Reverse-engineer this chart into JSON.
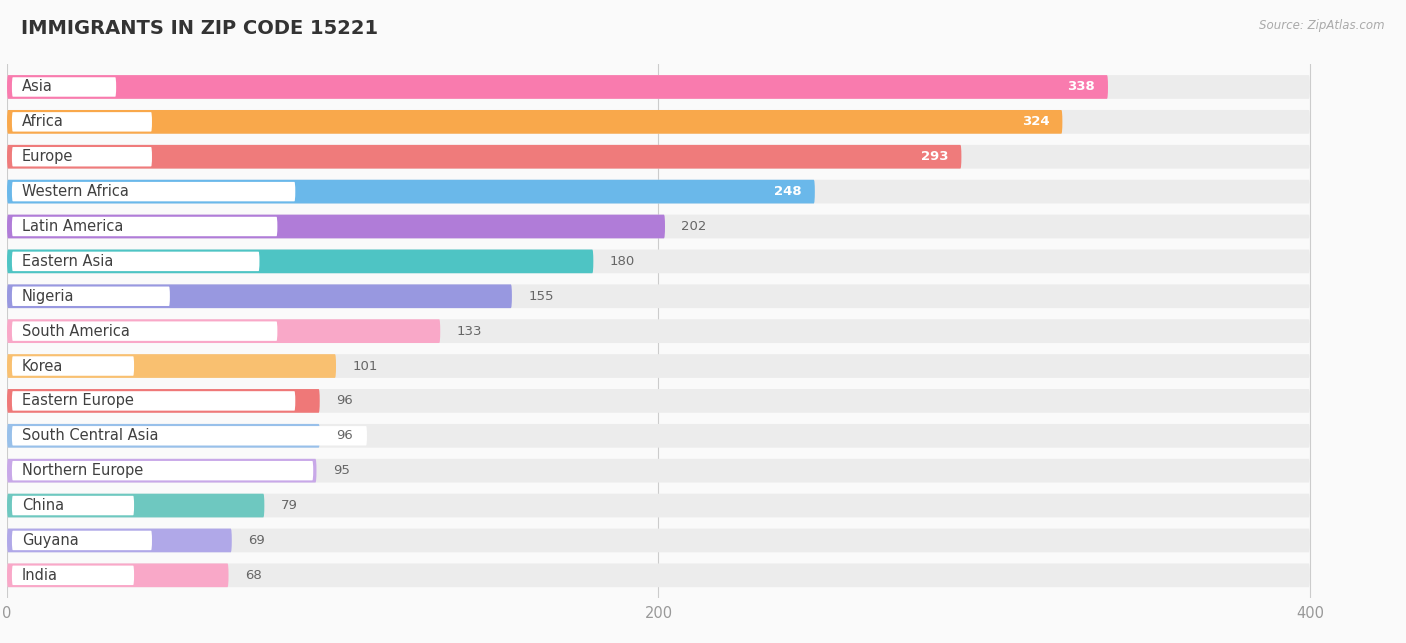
{
  "title": "IMMIGRANTS IN ZIP CODE 15221",
  "source": "Source: ZipAtlas.com",
  "categories": [
    "Asia",
    "Africa",
    "Europe",
    "Western Africa",
    "Latin America",
    "Eastern Asia",
    "Nigeria",
    "South America",
    "Korea",
    "Eastern Europe",
    "South Central Asia",
    "Northern Europe",
    "China",
    "Guyana",
    "India"
  ],
  "values": [
    338,
    324,
    293,
    248,
    202,
    180,
    155,
    133,
    101,
    96,
    96,
    95,
    79,
    69,
    68
  ],
  "colors": [
    "#F97BAE",
    "#F9A84B",
    "#EF7B7B",
    "#6AB8EA",
    "#B07CD8",
    "#4EC4C4",
    "#9898E0",
    "#F9A8C8",
    "#F9C070",
    "#EF7878",
    "#98C0EA",
    "#C8A8E8",
    "#6EC8C0",
    "#B0A8E8",
    "#F9A8C8"
  ],
  "bar_background": "#ECECEC",
  "background_color": "#FAFAFA",
  "xlim_data": 420,
  "data_max": 400,
  "xticks": [
    0,
    200,
    400
  ],
  "title_fontsize": 14,
  "label_fontsize": 10.5,
  "value_fontsize": 9.5,
  "value_inside_threshold": 248
}
